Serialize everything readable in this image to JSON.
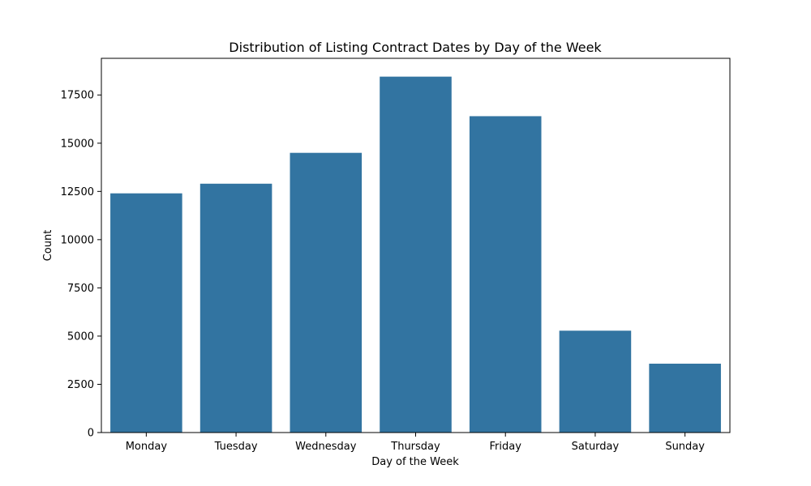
{
  "chart_data": {
    "type": "bar",
    "title": "Distribution of Listing Contract Dates by Day of the Week",
    "xlabel": "Day of the Week",
    "ylabel": "Count",
    "categories": [
      "Monday",
      "Tuesday",
      "Wednesday",
      "Thursday",
      "Friday",
      "Saturday",
      "Sunday"
    ],
    "values": [
      12400,
      12900,
      14500,
      18450,
      16400,
      5280,
      3570
    ],
    "ylim": [
      0,
      19400
    ],
    "yticks": [
      0,
      2500,
      5000,
      7500,
      10000,
      12500,
      15000,
      17500
    ],
    "ytick_labels": [
      "0",
      "2500",
      "5000",
      "7500",
      "10000",
      "12500",
      "15000",
      "17500"
    ],
    "bar_color": "#3274a1",
    "grid": false,
    "legend": "none"
  }
}
